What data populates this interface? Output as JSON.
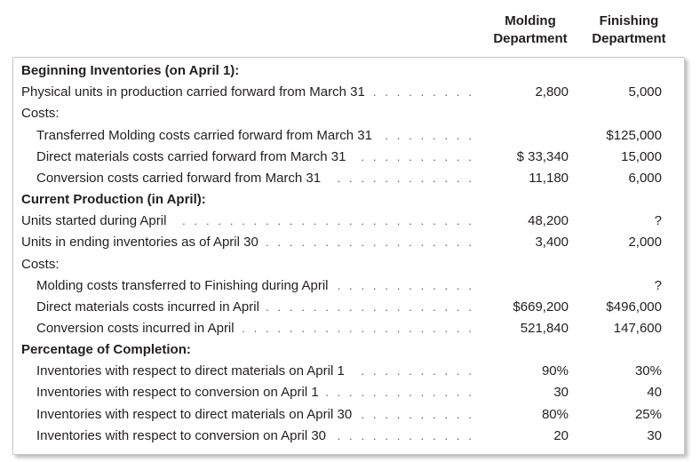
{
  "header": {
    "col1_line1": "Molding",
    "col1_line2": "Department",
    "col2_line1": "Finishing",
    "col2_line2": "Department"
  },
  "rows": [
    {
      "label": "Beginning Inventories (on April 1):",
      "bold": true,
      "indent": false,
      "dots": false,
      "v1": "",
      "v2": ""
    },
    {
      "label": "Physical units in production carried forward from March 31",
      "bold": false,
      "indent": false,
      "dots": true,
      "v1": "2,800",
      "v2": "5,000"
    },
    {
      "label": "Costs:",
      "bold": false,
      "indent": false,
      "dots": false,
      "v1": "",
      "v2": ""
    },
    {
      "label": "Transferred Molding costs carried forward from March 31",
      "bold": false,
      "indent": true,
      "dots": true,
      "v1": "",
      "v2": "$125,000"
    },
    {
      "label": "Direct materials costs carried forward from March 31",
      "bold": false,
      "indent": true,
      "dots": true,
      "v1": "$ 33,340",
      "v2": "15,000"
    },
    {
      "label": "Conversion costs carried forward from March 31",
      "bold": false,
      "indent": true,
      "dots": true,
      "v1": "11,180",
      "v2": "6,000"
    },
    {
      "label": "Current Production (in April):",
      "bold": true,
      "indent": false,
      "dots": false,
      "v1": "",
      "v2": ""
    },
    {
      "label": "Units started during April",
      "bold": false,
      "indent": false,
      "dots": true,
      "v1": "48,200",
      "v2": "?"
    },
    {
      "label": "Units in ending inventories as of April 30",
      "bold": false,
      "indent": false,
      "dots": true,
      "v1": "3,400",
      "v2": "2,000"
    },
    {
      "label": "Costs:",
      "bold": false,
      "indent": false,
      "dots": false,
      "v1": "",
      "v2": ""
    },
    {
      "label": "Molding costs transferred to Finishing during April",
      "bold": false,
      "indent": true,
      "dots": true,
      "v1": "",
      "v2": "?"
    },
    {
      "label": "Direct materials costs incurred in April",
      "bold": false,
      "indent": true,
      "dots": true,
      "v1": "$669,200",
      "v2": "$496,000"
    },
    {
      "label": "Conversion costs incurred in April",
      "bold": false,
      "indent": true,
      "dots": true,
      "v1": "521,840",
      "v2": "147,600"
    },
    {
      "label": "Percentage of Completion:",
      "bold": true,
      "indent": false,
      "dots": false,
      "v1": "",
      "v2": ""
    },
    {
      "label": "Inventories with respect to direct materials on April 1",
      "bold": false,
      "indent": true,
      "dots": true,
      "v1": "90%",
      "v2": "30%"
    },
    {
      "label": "Inventories with respect to conversion on April 1",
      "bold": false,
      "indent": true,
      "dots": true,
      "v1": "30",
      "v2": "40"
    },
    {
      "label": "Inventories with respect to direct materials on April 30",
      "bold": false,
      "indent": true,
      "dots": true,
      "v1": "80%",
      "v2": "25%"
    },
    {
      "label": "Inventories with respect to conversion on April 30",
      "bold": false,
      "indent": true,
      "dots": true,
      "v1": "20",
      "v2": "30"
    }
  ]
}
